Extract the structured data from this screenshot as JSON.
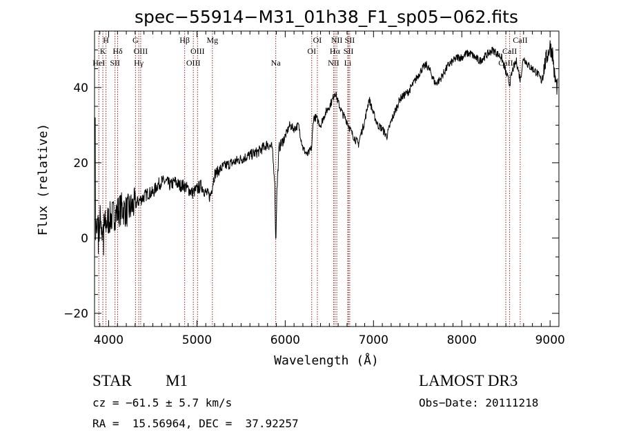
{
  "chart_data": {
    "type": "line",
    "title": "spec−55914−M31_01h38_F1_sp05−062.fits",
    "xlabel": "Wavelength (Å)",
    "ylabel": "Flux (relative)",
    "xlim": [
      3840,
      9100
    ],
    "ylim": [
      -23.5,
      55
    ],
    "xticks": [
      {
        "v": 4000,
        "label": "4000"
      },
      {
        "v": 5000,
        "label": "5000"
      },
      {
        "v": 6000,
        "label": "6000"
      },
      {
        "v": 7000,
        "label": "7000"
      },
      {
        "v": 8000,
        "label": "8000"
      },
      {
        "v": 9000,
        "label": "9000"
      }
    ],
    "yticks": [
      {
        "v": -20,
        "label": "−20"
      },
      {
        "v": 0,
        "label": "0"
      },
      {
        "v": 20,
        "label": "20"
      },
      {
        "v": 40,
        "label": "40"
      }
    ],
    "line_color": "#8b1a1a",
    "lines": [
      {
        "x": 3889,
        "label": "HeI",
        "tier": 3
      },
      {
        "x": 3934,
        "label": "K",
        "tier": 2
      },
      {
        "x": 3970,
        "label": "H",
        "tier": 1
      },
      {
        "x": 4072,
        "label": "SII",
        "tier": 3
      },
      {
        "x": 4102,
        "label": "Hδ",
        "tier": 2
      },
      {
        "x": 4304,
        "label": "G",
        "tier": 1
      },
      {
        "x": 4341,
        "label": "Hγ",
        "tier": 3
      },
      {
        "x": 4363,
        "label": "OIII",
        "tier": 2
      },
      {
        "x": 4861,
        "label": "Hβ",
        "tier": 1
      },
      {
        "x": 4959,
        "label": "OIII",
        "tier": 3
      },
      {
        "x": 5007,
        "label": "OIII",
        "tier": 2
      },
      {
        "x": 5175,
        "label": "Mg",
        "tier": 1
      },
      {
        "x": 5893,
        "label": "Na",
        "tier": 3
      },
      {
        "x": 6300,
        "label": "OI",
        "tier": 2
      },
      {
        "x": 6364,
        "label": "OI",
        "tier": 1
      },
      {
        "x": 6548,
        "label": "NII",
        "tier": 3
      },
      {
        "x": 6563,
        "label": "Hα",
        "tier": 2
      },
      {
        "x": 6584,
        "label": "NII",
        "tier": 1
      },
      {
        "x": 6708,
        "label": "Li",
        "tier": 3
      },
      {
        "x": 6717,
        "label": "SII",
        "tier": 2
      },
      {
        "x": 6731,
        "label": "SII",
        "tier": 1
      },
      {
        "x": 8498,
        "label": "CaII",
        "tier": 3
      },
      {
        "x": 8542,
        "label": "CaII",
        "tier": 2
      },
      {
        "x": 8662,
        "label": "CaII",
        "tier": 1
      }
    ],
    "anchors": [
      [
        3850,
        2
      ],
      [
        3900,
        5
      ],
      [
        3950,
        3
      ],
      [
        4000,
        5
      ],
      [
        4050,
        6
      ],
      [
        4100,
        7
      ],
      [
        4150,
        8
      ],
      [
        4200,
        7
      ],
      [
        4250,
        8
      ],
      [
        4300,
        9
      ],
      [
        4350,
        10
      ],
      [
        4400,
        11
      ],
      [
        4450,
        12
      ],
      [
        4500,
        12
      ],
      [
        4550,
        14
      ],
      [
        4600,
        15
      ],
      [
        4650,
        15
      ],
      [
        4700,
        14
      ],
      [
        4750,
        15
      ],
      [
        4800,
        14
      ],
      [
        4850,
        14
      ],
      [
        4900,
        13
      ],
      [
        4950,
        12
      ],
      [
        5000,
        13
      ],
      [
        5050,
        14
      ],
      [
        5100,
        12
      ],
      [
        5150,
        11
      ],
      [
        5200,
        17
      ],
      [
        5300,
        19
      ],
      [
        5400,
        20
      ],
      [
        5500,
        21
      ],
      [
        5600,
        22
      ],
      [
        5700,
        23
      ],
      [
        5800,
        25
      ],
      [
        5850,
        24
      ],
      [
        5880,
        16
      ],
      [
        5893,
        -2
      ],
      [
        5905,
        12
      ],
      [
        5930,
        24
      ],
      [
        6000,
        27
      ],
      [
        6050,
        30
      ],
      [
        6100,
        29
      ],
      [
        6150,
        30
      ],
      [
        6200,
        24
      ],
      [
        6250,
        22
      ],
      [
        6300,
        24
      ],
      [
        6320,
        32
      ],
      [
        6350,
        32
      ],
      [
        6400,
        30
      ],
      [
        6450,
        33
      ],
      [
        6500,
        35
      ],
      [
        6540,
        37
      ],
      [
        6563,
        39
      ],
      [
        6600,
        36
      ],
      [
        6650,
        33
      ],
      [
        6700,
        31
      ],
      [
        6750,
        28
      ],
      [
        6800,
        26
      ],
      [
        6830,
        25
      ],
      [
        6850,
        27
      ],
      [
        6900,
        31
      ],
      [
        6950,
        37
      ],
      [
        7000,
        33
      ],
      [
        7050,
        30
      ],
      [
        7100,
        29
      ],
      [
        7150,
        27
      ],
      [
        7200,
        31
      ],
      [
        7250,
        34
      ],
      [
        7300,
        37
      ],
      [
        7350,
        38
      ],
      [
        7400,
        39
      ],
      [
        7450,
        41
      ],
      [
        7500,
        43
      ],
      [
        7550,
        45
      ],
      [
        7600,
        46
      ],
      [
        7650,
        44
      ],
      [
        7700,
        41
      ],
      [
        7750,
        42
      ],
      [
        7800,
        44
      ],
      [
        7850,
        46
      ],
      [
        7900,
        47
      ],
      [
        7950,
        48
      ],
      [
        8000,
        48
      ],
      [
        8050,
        49
      ],
      [
        8100,
        49
      ],
      [
        8150,
        48
      ],
      [
        8200,
        47
      ],
      [
        8250,
        48
      ],
      [
        8300,
        49
      ],
      [
        8350,
        50
      ],
      [
        8400,
        49
      ],
      [
        8450,
        48
      ],
      [
        8500,
        44
      ],
      [
        8542,
        41
      ],
      [
        8580,
        45
      ],
      [
        8620,
        47
      ],
      [
        8662,
        42
      ],
      [
        8700,
        48
      ],
      [
        8750,
        46
      ],
      [
        8800,
        45
      ],
      [
        8850,
        44
      ],
      [
        8900,
        42
      ],
      [
        8950,
        47
      ],
      [
        9000,
        51
      ],
      [
        9030,
        49
      ],
      [
        9050,
        43
      ],
      [
        9080,
        40
      ]
    ]
  },
  "info": {
    "object_class": "STAR",
    "subclass": "M1",
    "survey": "LAMOST DR3",
    "velocity": "cz = −61.5 ± 5.7 km/s",
    "obs_date": "Obs−Date: 20111218",
    "coords": "RA =  15.56964, DEC =  37.92257"
  }
}
